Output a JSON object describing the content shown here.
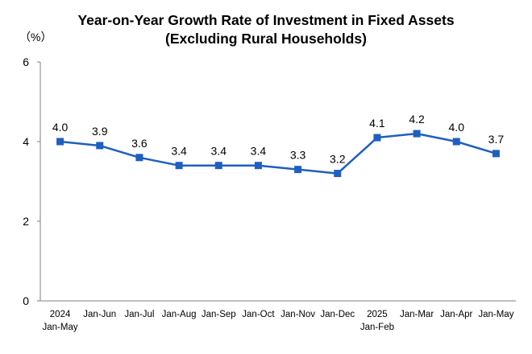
{
  "chart_data": {
    "type": "line",
    "title_lines": [
      "Year-on-Year Growth Rate of Investment in Fixed Assets",
      "(Excluding Rural Households)"
    ],
    "unit_label": "（%）",
    "ylim": [
      0,
      6
    ],
    "yticks": [
      "0",
      "2",
      "4",
      "6"
    ],
    "categories": [
      [
        "2024",
        "Jan-May"
      ],
      [
        "Jan-Jun"
      ],
      [
        "Jan-Jul"
      ],
      [
        "Jan-Aug"
      ],
      [
        "Jan-Sep"
      ],
      [
        "Jan-Oct"
      ],
      [
        "Jan-Nov"
      ],
      [
        "Jan-Dec"
      ],
      [
        "2025",
        "Jan-Feb"
      ],
      [
        "Jan-Mar"
      ],
      [
        "Jan-Apr"
      ],
      [
        "Jan-May"
      ]
    ],
    "values": [
      4.0,
      3.9,
      3.6,
      3.4,
      3.4,
      3.4,
      3.3,
      3.2,
      4.1,
      4.2,
      4.0,
      3.7
    ],
    "value_labels": [
      "4.0",
      "3.9",
      "3.6",
      "3.4",
      "3.4",
      "3.4",
      "3.3",
      "3.2",
      "4.1",
      "4.2",
      "4.0",
      "3.7"
    ],
    "line_color": "#1F5FBF",
    "marker_color": "#1F5FBF",
    "axis_color": "#7f7f7f"
  }
}
